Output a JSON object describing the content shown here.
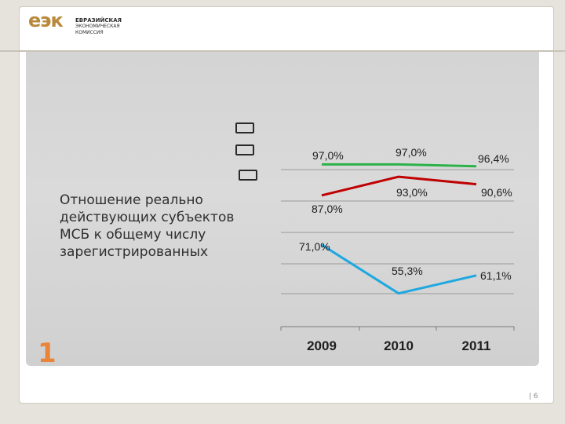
{
  "header": {
    "logo_mark": "еэк",
    "logo_lines": [
      "ЕВРАЗИЙСКАЯ",
      "ЭКОНОМИЧЕСКАЯ",
      "КОМИССИЯ"
    ]
  },
  "slide": {
    "label": "Отношение реально действующих субъектов МСБ к общему числу зарегистрированных",
    "number": "1",
    "page": "| 6"
  },
  "colors": {
    "red": "#c00000",
    "green": "#2db24a",
    "blue": "#1fa8e0",
    "accent": "#e8853a"
  },
  "chart_data": {
    "type": "line",
    "categories": [
      "2009",
      "2010",
      "2011"
    ],
    "series": [
      {
        "color": "#2db24a",
        "values": [
          97.0,
          97.0,
          96.4
        ],
        "labels": [
          "97,0%",
          "97,0%",
          "96,4%"
        ]
      },
      {
        "color": "#c00000",
        "values": [
          87.0,
          93.0,
          90.6
        ],
        "labels": [
          "87,0%",
          "93,0%",
          "90,6%"
        ]
      },
      {
        "color": "#1fa8e0",
        "values": [
          71.0,
          55.3,
          61.1
        ],
        "labels": [
          "71,0%",
          "55,3%",
          "61,1%"
        ]
      }
    ],
    "legend": "top-left, unlabeled color swatches",
    "grid": "horizontal gridlines",
    "xlabel": "",
    "ylabel": ""
  }
}
